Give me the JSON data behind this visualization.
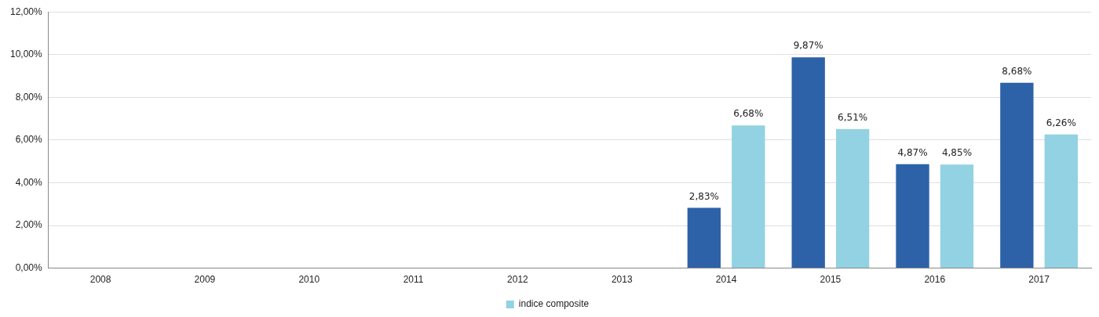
{
  "chart_data": {
    "type": "bar",
    "categories": [
      "2008",
      "2009",
      "2010",
      "2011",
      "2012",
      "2013",
      "2014",
      "2015",
      "2016",
      "2017"
    ],
    "series": [
      {
        "color": "#2e62a8",
        "values": [
          null,
          null,
          null,
          null,
          null,
          null,
          2.83,
          9.87,
          4.87,
          8.68
        ],
        "value_labels": [
          null,
          null,
          null,
          null,
          null,
          null,
          "2,83%",
          "9,87%",
          "4,87%",
          "8,68%"
        ]
      },
      {
        "name": "indice composite",
        "color": "#93d2e2",
        "values": [
          null,
          null,
          null,
          null,
          null,
          null,
          6.68,
          6.51,
          4.85,
          6.26
        ],
        "value_labels": [
          null,
          null,
          null,
          null,
          null,
          null,
          "6,68%",
          "6,51%",
          "4,85%",
          "6,26%"
        ]
      }
    ],
    "ylim": [
      0,
      12
    ],
    "yticks": [
      {
        "value": 0,
        "label": "0,00%"
      },
      {
        "value": 2,
        "label": "2,00%"
      },
      {
        "value": 4,
        "label": "4,00%"
      },
      {
        "value": 6,
        "label": "6,00%"
      },
      {
        "value": 8,
        "label": "8,00%"
      },
      {
        "value": 10,
        "label": "10,00%"
      },
      {
        "value": 12,
        "label": "12,00%"
      }
    ],
    "grid": "y",
    "legend": "bottom"
  }
}
